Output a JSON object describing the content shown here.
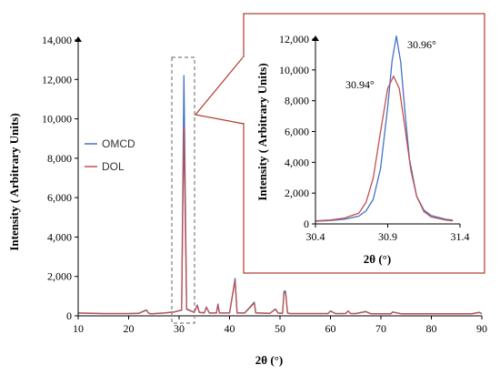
{
  "chart_data": [
    {
      "type": "line",
      "xlabel": "2θ (°)",
      "ylabel": "Intensity ( Arbitrary Units)",
      "xlim": [
        10,
        90
      ],
      "ylim": [
        0,
        14000
      ],
      "xticks": [
        "10",
        "20",
        "30",
        "40",
        "50",
        "60",
        "70",
        "80",
        "90"
      ],
      "yticks": [
        "0",
        "2,000",
        "4,000",
        "6,000",
        "8,000",
        "10,000",
        "12,000",
        "14,000"
      ],
      "legend": "left",
      "series": [
        {
          "name": "OMCD",
          "color": "#4472c4",
          "x": [
            10,
            15,
            20,
            22,
            23.5,
            24,
            24.5,
            27,
            29,
            30.5,
            30.96,
            31.5,
            33,
            33.6,
            34,
            35,
            35.4,
            36,
            37.4,
            37.7,
            38,
            40,
            41.1,
            41.5,
            42,
            43,
            44.9,
            45.2,
            46,
            48,
            49.1,
            49.6,
            50.5,
            50.8,
            51.1,
            51.5,
            52,
            55,
            59.5,
            60,
            61,
            63,
            63.5,
            64,
            65,
            67,
            68,
            70,
            72,
            72.3,
            74,
            76,
            80,
            85,
            88,
            89.5,
            90
          ],
          "y": [
            150,
            120,
            120,
            130,
            300,
            130,
            110,
            150,
            200,
            300,
            12200,
            350,
            180,
            550,
            180,
            160,
            450,
            150,
            150,
            600,
            150,
            150,
            1900,
            150,
            150,
            150,
            700,
            150,
            150,
            130,
            350,
            150,
            130,
            1250,
            1250,
            150,
            120,
            120,
            120,
            250,
            120,
            120,
            250,
            120,
            120,
            220,
            110,
            110,
            110,
            200,
            110,
            110,
            110,
            110,
            110,
            180,
            110
          ]
        },
        {
          "name": "DOL",
          "color": "#c0504d",
          "x": [
            10,
            15,
            20,
            22,
            23.5,
            24,
            24.5,
            27,
            29,
            30.5,
            30.94,
            31.5,
            33,
            33.6,
            34,
            35,
            35.4,
            36,
            37.4,
            37.7,
            38,
            40,
            41.1,
            41.5,
            42,
            43,
            44.9,
            45.2,
            46,
            48,
            49.1,
            49.6,
            50.5,
            50.8,
            51.1,
            51.5,
            52,
            55,
            59.5,
            60,
            61,
            63,
            63.5,
            64,
            65,
            67,
            68,
            70,
            72,
            72.3,
            74,
            76,
            80,
            85,
            88,
            89.5,
            90
          ],
          "y": [
            140,
            110,
            110,
            120,
            280,
            120,
            100,
            140,
            190,
            280,
            9600,
            330,
            170,
            520,
            170,
            150,
            430,
            140,
            140,
            560,
            140,
            140,
            1800,
            140,
            140,
            140,
            650,
            140,
            140,
            120,
            330,
            140,
            120,
            1150,
            1200,
            140,
            110,
            110,
            110,
            240,
            110,
            110,
            240,
            110,
            110,
            210,
            100,
            100,
            100,
            190,
            100,
            100,
            100,
            100,
            100,
            170,
            100
          ]
        }
      ]
    },
    {
      "type": "line",
      "xlabel": "2θ (°)",
      "ylabel": "Intensity ( Arbitrary Units)",
      "xlim": [
        30.4,
        31.4
      ],
      "ylim": [
        0,
        12000
      ],
      "xticks": [
        "30.4",
        "30.9",
        "31.4"
      ],
      "yticks": [
        "0",
        "2,000",
        "4,000",
        "6,000",
        "8,000",
        "10,000",
        "12,000"
      ],
      "annotations": [
        "30.96°",
        "30.94°"
      ],
      "series": [
        {
          "name": "OMCD",
          "color": "#4472c4",
          "x": [
            30.4,
            30.5,
            30.6,
            30.7,
            30.75,
            30.8,
            30.85,
            30.9,
            30.93,
            30.96,
            30.99,
            31.02,
            31.05,
            31.1,
            31.15,
            31.2,
            31.3,
            31.35
          ],
          "y": [
            180,
            220,
            300,
            500,
            850,
            1600,
            3600,
            7600,
            10600,
            12200,
            10500,
            7200,
            4200,
            1800,
            900,
            550,
            300,
            250
          ]
        },
        {
          "name": "DOL",
          "color": "#c0504d",
          "x": [
            30.4,
            30.5,
            30.6,
            30.7,
            30.75,
            30.8,
            30.85,
            30.9,
            30.94,
            30.98,
            31.02,
            31.06,
            31.1,
            31.15,
            31.2,
            31.3,
            31.35
          ],
          "y": [
            200,
            250,
            380,
            700,
            1400,
            3000,
            6000,
            8800,
            9600,
            8800,
            6200,
            3500,
            1800,
            800,
            450,
            250,
            200
          ]
        }
      ]
    }
  ]
}
